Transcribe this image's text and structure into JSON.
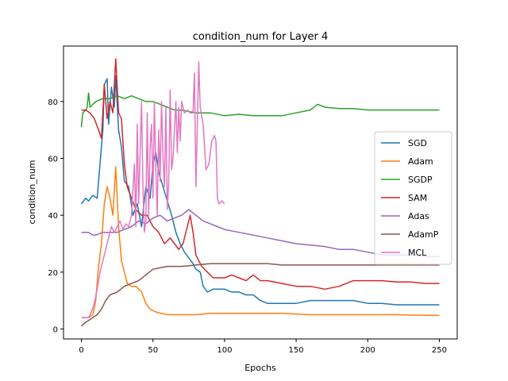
{
  "chart_data": {
    "type": "line",
    "title": "condition_num for Layer 4",
    "xlabel": "Epochs",
    "ylabel": "condition_num",
    "xlim": [
      -12.5,
      262.5
    ],
    "ylim": [
      -3.5,
      99.5
    ],
    "xticks": [
      0,
      50,
      100,
      150,
      200,
      250
    ],
    "yticks": [
      0,
      20,
      40,
      60,
      80
    ],
    "grid": false,
    "legend": "center-right",
    "series": [
      {
        "name": "SGD",
        "color": "#1f77b4",
        "points": [
          [
            0,
            44
          ],
          [
            3,
            46
          ],
          [
            5,
            45
          ],
          [
            8,
            47
          ],
          [
            11,
            46
          ],
          [
            13,
            58
          ],
          [
            15,
            70
          ],
          [
            16,
            86
          ],
          [
            18,
            88
          ],
          [
            19,
            72
          ],
          [
            21,
            85
          ],
          [
            23,
            78
          ],
          [
            24,
            89
          ],
          [
            26,
            70
          ],
          [
            28,
            64
          ],
          [
            30,
            52
          ],
          [
            33,
            50
          ],
          [
            36,
            40
          ],
          [
            39,
            44
          ],
          [
            42,
            36
          ],
          [
            45,
            50
          ],
          [
            48,
            46
          ],
          [
            50,
            58
          ],
          [
            52,
            62
          ],
          [
            54,
            55
          ],
          [
            57,
            50
          ],
          [
            60,
            45
          ],
          [
            63,
            40
          ],
          [
            66,
            34
          ],
          [
            69,
            30
          ],
          [
            72,
            27
          ],
          [
            75,
            25
          ],
          [
            78,
            23
          ],
          [
            80,
            21
          ],
          [
            83,
            20
          ],
          [
            85,
            15
          ],
          [
            88,
            13
          ],
          [
            92,
            14
          ],
          [
            96,
            14
          ],
          [
            100,
            14
          ],
          [
            105,
            13
          ],
          [
            110,
            13
          ],
          [
            115,
            12
          ],
          [
            120,
            12
          ],
          [
            125,
            10
          ],
          [
            130,
            9
          ],
          [
            140,
            9
          ],
          [
            150,
            9
          ],
          [
            160,
            10
          ],
          [
            170,
            10
          ],
          [
            180,
            10
          ],
          [
            190,
            10
          ],
          [
            200,
            9
          ],
          [
            210,
            9
          ],
          [
            220,
            8.5
          ],
          [
            230,
            8.5
          ],
          [
            240,
            8.5
          ],
          [
            250,
            8.5
          ]
        ]
      },
      {
        "name": "Adam",
        "color": "#ff7f0e",
        "points": [
          [
            0,
            4
          ],
          [
            5,
            4
          ],
          [
            8,
            5
          ],
          [
            10,
            10
          ],
          [
            12,
            22
          ],
          [
            14,
            30
          ],
          [
            16,
            44
          ],
          [
            18,
            50
          ],
          [
            20,
            46
          ],
          [
            22,
            40
          ],
          [
            24,
            57
          ],
          [
            26,
            36
          ],
          [
            28,
            24
          ],
          [
            30,
            20
          ],
          [
            32,
            16
          ],
          [
            35,
            15
          ],
          [
            38,
            15
          ],
          [
            42,
            13
          ],
          [
            45,
            9
          ],
          [
            48,
            7
          ],
          [
            52,
            6
          ],
          [
            56,
            5.5
          ],
          [
            60,
            5
          ],
          [
            66,
            5
          ],
          [
            72,
            5
          ],
          [
            80,
            5
          ],
          [
            90,
            5.5
          ],
          [
            100,
            5.5
          ],
          [
            120,
            5.5
          ],
          [
            140,
            5.5
          ],
          [
            160,
            5
          ],
          [
            180,
            5
          ],
          [
            200,
            5
          ],
          [
            220,
            5
          ],
          [
            240,
            4.8
          ],
          [
            250,
            4.8
          ]
        ]
      },
      {
        "name": "SGDP",
        "color": "#2ca02c",
        "points": [
          [
            0,
            71
          ],
          [
            1,
            76
          ],
          [
            3,
            77
          ],
          [
            4,
            78
          ],
          [
            5,
            83
          ],
          [
            6,
            78
          ],
          [
            8,
            79
          ],
          [
            10,
            80
          ],
          [
            15,
            81
          ],
          [
            20,
            81
          ],
          [
            25,
            82
          ],
          [
            30,
            81
          ],
          [
            35,
            82
          ],
          [
            40,
            81
          ],
          [
            45,
            80
          ],
          [
            50,
            80
          ],
          [
            55,
            79
          ],
          [
            60,
            78
          ],
          [
            65,
            77
          ],
          [
            70,
            77
          ],
          [
            80,
            76
          ],
          [
            90,
            76
          ],
          [
            100,
            75
          ],
          [
            110,
            75.5
          ],
          [
            120,
            75
          ],
          [
            130,
            75
          ],
          [
            140,
            75
          ],
          [
            150,
            76
          ],
          [
            160,
            77
          ],
          [
            165,
            79
          ],
          [
            170,
            78
          ],
          [
            180,
            77.5
          ],
          [
            190,
            77.5
          ],
          [
            200,
            77
          ],
          [
            210,
            77
          ],
          [
            220,
            77
          ],
          [
            230,
            77
          ],
          [
            240,
            77
          ],
          [
            250,
            77
          ]
        ]
      },
      {
        "name": "SAM",
        "color": "#d62728",
        "points": [
          [
            0,
            77
          ],
          [
            3,
            77
          ],
          [
            6,
            76
          ],
          [
            9,
            74
          ],
          [
            12,
            70
          ],
          [
            14,
            67
          ],
          [
            16,
            86
          ],
          [
            18,
            74
          ],
          [
            20,
            80
          ],
          [
            22,
            76
          ],
          [
            24,
            95
          ],
          [
            26,
            76
          ],
          [
            28,
            74
          ],
          [
            30,
            58
          ],
          [
            32,
            50
          ],
          [
            35,
            46
          ],
          [
            38,
            42
          ],
          [
            42,
            40
          ],
          [
            46,
            40
          ],
          [
            50,
            36
          ],
          [
            54,
            34
          ],
          [
            58,
            30
          ],
          [
            62,
            32
          ],
          [
            65,
            30
          ],
          [
            68,
            28
          ],
          [
            71,
            30
          ],
          [
            74,
            36
          ],
          [
            76,
            40
          ],
          [
            78,
            34
          ],
          [
            80,
            26
          ],
          [
            84,
            22
          ],
          [
            88,
            20
          ],
          [
            92,
            18
          ],
          [
            96,
            18
          ],
          [
            100,
            18
          ],
          [
            105,
            19
          ],
          [
            110,
            18
          ],
          [
            115,
            17
          ],
          [
            120,
            19
          ],
          [
            125,
            17
          ],
          [
            130,
            17
          ],
          [
            140,
            16
          ],
          [
            150,
            15
          ],
          [
            160,
            15
          ],
          [
            170,
            14
          ],
          [
            180,
            15
          ],
          [
            190,
            17
          ],
          [
            200,
            17
          ],
          [
            210,
            17
          ],
          [
            220,
            16.5
          ],
          [
            230,
            16.5
          ],
          [
            240,
            16
          ],
          [
            250,
            16
          ]
        ]
      },
      {
        "name": "Adas",
        "color": "#9467bd",
        "points": [
          [
            0,
            34
          ],
          [
            5,
            34
          ],
          [
            8,
            33
          ],
          [
            10,
            33
          ],
          [
            15,
            34
          ],
          [
            20,
            34
          ],
          [
            25,
            34
          ],
          [
            30,
            35
          ],
          [
            35,
            36
          ],
          [
            40,
            38
          ],
          [
            45,
            37
          ],
          [
            50,
            39
          ],
          [
            55,
            40
          ],
          [
            60,
            38
          ],
          [
            65,
            39
          ],
          [
            70,
            40
          ],
          [
            75,
            42
          ],
          [
            80,
            40
          ],
          [
            85,
            38
          ],
          [
            90,
            37
          ],
          [
            95,
            36
          ],
          [
            100,
            35
          ],
          [
            110,
            34
          ],
          [
            120,
            33
          ],
          [
            130,
            32
          ],
          [
            140,
            31
          ],
          [
            150,
            30
          ],
          [
            160,
            29.5
          ],
          [
            170,
            29
          ],
          [
            180,
            28
          ],
          [
            190,
            28
          ],
          [
            200,
            27
          ],
          [
            210,
            26
          ],
          [
            220,
            26
          ],
          [
            230,
            26
          ],
          [
            240,
            25.5
          ],
          [
            250,
            25.5
          ]
        ]
      },
      {
        "name": "AdamP",
        "color": "#8c564b",
        "points": [
          [
            0,
            1
          ],
          [
            2,
            2
          ],
          [
            5,
            3
          ],
          [
            8,
            4
          ],
          [
            11,
            5
          ],
          [
            14,
            7
          ],
          [
            17,
            10
          ],
          [
            20,
            12
          ],
          [
            25,
            13
          ],
          [
            30,
            15
          ],
          [
            35,
            16
          ],
          [
            40,
            17
          ],
          [
            45,
            19
          ],
          [
            50,
            21
          ],
          [
            55,
            21.5
          ],
          [
            60,
            22
          ],
          [
            65,
            22
          ],
          [
            70,
            22
          ],
          [
            80,
            22.5
          ],
          [
            90,
            23
          ],
          [
            100,
            23
          ],
          [
            110,
            23
          ],
          [
            120,
            23
          ],
          [
            130,
            23
          ],
          [
            140,
            22.5
          ],
          [
            150,
            22.5
          ],
          [
            160,
            22.5
          ],
          [
            170,
            22.5
          ],
          [
            180,
            22.5
          ],
          [
            190,
            22.5
          ],
          [
            200,
            22.5
          ],
          [
            210,
            22.5
          ],
          [
            220,
            22.5
          ],
          [
            230,
            22.5
          ],
          [
            240,
            22.5
          ],
          [
            250,
            22.5
          ]
        ]
      },
      {
        "name": "MCL",
        "color": "#e377c2",
        "points": [
          [
            0,
            4
          ],
          [
            3,
            4
          ],
          [
            5,
            4
          ],
          [
            7,
            6
          ],
          [
            9,
            9
          ],
          [
            11,
            14
          ],
          [
            13,
            20
          ],
          [
            15,
            24
          ],
          [
            17,
            28
          ],
          [
            19,
            32
          ],
          [
            21,
            36
          ],
          [
            23,
            34
          ],
          [
            25,
            36
          ],
          [
            27,
            38
          ],
          [
            29,
            35
          ],
          [
            31,
            37
          ],
          [
            33,
            36
          ],
          [
            35,
            40
          ],
          [
            37,
            58
          ],
          [
            38,
            36
          ],
          [
            39,
            72
          ],
          [
            40,
            44
          ],
          [
            41,
            62
          ],
          [
            42,
            80
          ],
          [
            43,
            50
          ],
          [
            44,
            34
          ],
          [
            45,
            38
          ],
          [
            46,
            76
          ],
          [
            47,
            40
          ],
          [
            48,
            64
          ],
          [
            49,
            72
          ],
          [
            50,
            46
          ],
          [
            51,
            80
          ],
          [
            52,
            56
          ],
          [
            53,
            40
          ],
          [
            54,
            70
          ],
          [
            55,
            52
          ],
          [
            56,
            80
          ],
          [
            57,
            60
          ],
          [
            58,
            50
          ],
          [
            59,
            78
          ],
          [
            60,
            42
          ],
          [
            61,
            52
          ],
          [
            62,
            84
          ],
          [
            63,
            56
          ],
          [
            64,
            60
          ],
          [
            65,
            70
          ],
          [
            66,
            80
          ],
          [
            67,
            62
          ],
          [
            68,
            78
          ],
          [
            69,
            66
          ],
          [
            70,
            80
          ],
          [
            72,
            76
          ],
          [
            74,
            77
          ],
          [
            76,
            76
          ],
          [
            78,
            76
          ],
          [
            79,
            90
          ],
          [
            80,
            50
          ],
          [
            81,
            72
          ],
          [
            82,
            94
          ],
          [
            83,
            78
          ],
          [
            85,
            72
          ],
          [
            87,
            56
          ],
          [
            89,
            58
          ],
          [
            91,
            66
          ],
          [
            93,
            68
          ],
          [
            94,
            66
          ],
          [
            95,
            46
          ],
          [
            96,
            44
          ],
          [
            98,
            45
          ],
          [
            100,
            44
          ]
        ]
      }
    ]
  }
}
